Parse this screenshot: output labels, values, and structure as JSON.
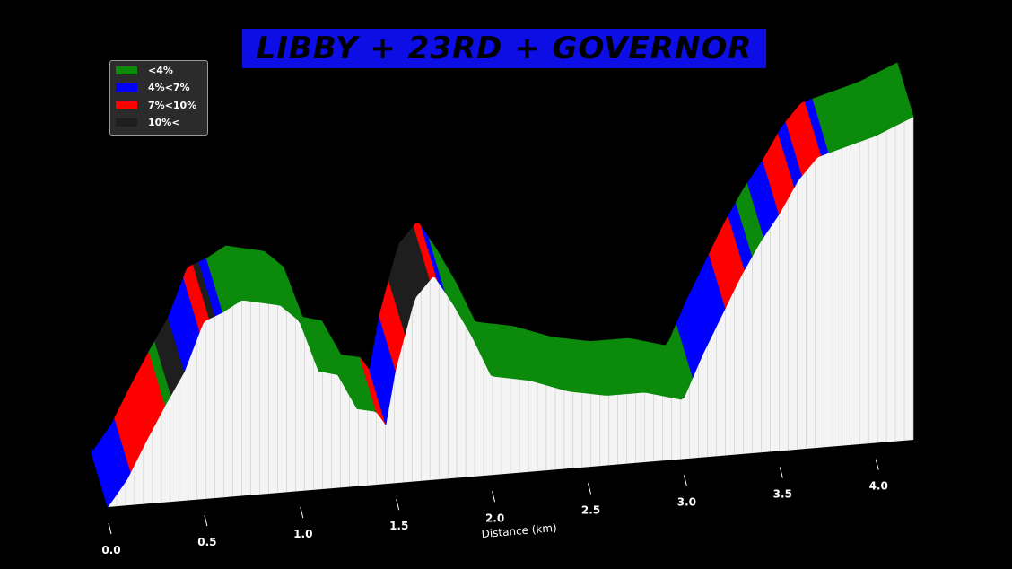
{
  "title": "LIBBY + 23RD + GOVERNOR",
  "colors": {
    "background": "#000000",
    "title_bg": "#0d0de6",
    "base": "#ffffff"
  },
  "legend": {
    "placement": "top-left",
    "items": [
      {
        "label": "<4%",
        "color": "#0b8a0b"
      },
      {
        "label": "4%<7%",
        "color": "#0000ff"
      },
      {
        "label": "7%<10%",
        "color": "#ff0000"
      },
      {
        "label": "10%<",
        "color": "#1e1e1e"
      }
    ]
  },
  "chart_data": {
    "type": "area",
    "title": "LIBBY + 23RD + GOVERNOR",
    "xlabel": "Distance (km)",
    "ylabel": "",
    "x_ticks": [
      "0.0",
      "0.5",
      "1.0",
      "1.5",
      "2.0",
      "2.5",
      "3.0",
      "3.5",
      "4.0"
    ],
    "xlim": [
      0,
      4.2
    ],
    "profile": {
      "x": [
        0.0,
        0.1,
        0.2,
        0.3,
        0.4,
        0.5,
        0.6,
        0.7,
        0.8,
        0.9,
        1.0,
        1.1,
        1.2,
        1.3,
        1.4,
        1.45,
        1.5,
        1.6,
        1.7,
        1.8,
        1.9,
        2.0,
        2.2,
        2.4,
        2.6,
        2.8,
        3.0,
        3.1,
        3.2,
        3.3,
        3.4,
        3.5,
        3.6,
        3.7,
        3.8,
        3.9,
        4.0,
        4.2
      ],
      "y": [
        0.0,
        0.24,
        0.58,
        0.9,
        1.2,
        1.65,
        1.72,
        1.82,
        1.78,
        1.74,
        1.58,
        1.1,
        1.05,
        0.72,
        0.68,
        0.55,
        1.05,
        1.7,
        1.9,
        1.62,
        1.3,
        0.92,
        0.85,
        0.72,
        0.65,
        0.65,
        0.55,
        0.95,
        1.3,
        1.65,
        1.95,
        2.2,
        2.5,
        2.7,
        2.75,
        2.8,
        2.85,
        3.0
      ]
    },
    "gradient_segments": [
      {
        "from": 0.0,
        "to": 0.12,
        "band": "4%<7%"
      },
      {
        "from": 0.12,
        "to": 0.3,
        "band": "7%<10%"
      },
      {
        "from": 0.3,
        "to": 0.33,
        "band": "<4%"
      },
      {
        "from": 0.33,
        "to": 0.4,
        "band": "10%<"
      },
      {
        "from": 0.4,
        "to": 0.48,
        "band": "4%<7%"
      },
      {
        "from": 0.48,
        "to": 0.53,
        "band": "7%<10%"
      },
      {
        "from": 0.53,
        "to": 0.56,
        "band": "10%<"
      },
      {
        "from": 0.56,
        "to": 0.6,
        "band": "4%<7%"
      },
      {
        "from": 0.6,
        "to": 1.4,
        "band": "<4%"
      },
      {
        "from": 1.4,
        "to": 1.45,
        "band": "7%<10%"
      },
      {
        "from": 1.45,
        "to": 1.5,
        "band": "4%<7%"
      },
      {
        "from": 1.5,
        "to": 1.55,
        "band": "7%<10%"
      },
      {
        "from": 1.55,
        "to": 1.68,
        "band": "10%<"
      },
      {
        "from": 1.68,
        "to": 1.72,
        "band": "7%<10%"
      },
      {
        "from": 1.72,
        "to": 1.76,
        "band": "4%<7%"
      },
      {
        "from": 1.76,
        "to": 3.05,
        "band": "<4%"
      },
      {
        "from": 3.05,
        "to": 3.22,
        "band": "4%<7%"
      },
      {
        "from": 3.22,
        "to": 3.32,
        "band": "7%<10%"
      },
      {
        "from": 3.32,
        "to": 3.36,
        "band": "4%<7%"
      },
      {
        "from": 3.36,
        "to": 3.42,
        "band": "<4%"
      },
      {
        "from": 3.42,
        "to": 3.5,
        "band": "4%<7%"
      },
      {
        "from": 3.5,
        "to": 3.58,
        "band": "7%<10%"
      },
      {
        "from": 3.58,
        "to": 3.62,
        "band": "4%<7%"
      },
      {
        "from": 3.62,
        "to": 3.72,
        "band": "7%<10%"
      },
      {
        "from": 3.72,
        "to": 3.76,
        "band": "4%<7%"
      },
      {
        "from": 3.76,
        "to": 4.2,
        "band": "<4%"
      }
    ],
    "grid": false
  }
}
